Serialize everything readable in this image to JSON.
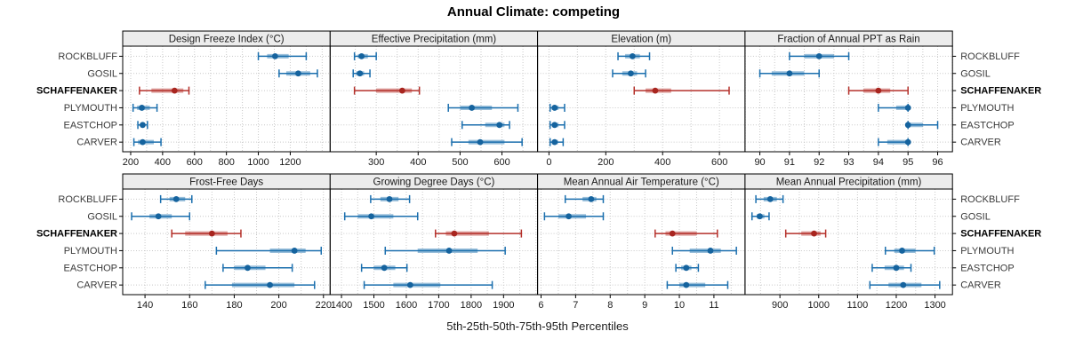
{
  "chart_data": {
    "type": "scatter",
    "subtype": "percentile-dotplot-trellis",
    "title": "Annual Climate: competing",
    "xlabel": "5th-25th-50th-75th-95th Percentiles",
    "percentile_levels": [
      5,
      25,
      50,
      75,
      95
    ],
    "stations": [
      "ROCKBLUFF",
      "GOSIL",
      "SCHAFFENAKER",
      "PLYMOUTH",
      "EASTCHOP",
      "CARVER"
    ],
    "highlight_station": "SCHAFFENAKER",
    "legend_position": "none",
    "grid": true,
    "colors": {
      "normal": "#1b6fae",
      "normal_point": "#15639e",
      "highlight": "#b5302a",
      "highlight_point": "#a8251f",
      "strip_bg": "#ececec",
      "border": "#000000",
      "grid_line": "#c9c9c9",
      "label": "#3a3a3a"
    },
    "panels": [
      {
        "title": "Design Freeze Index (°C)",
        "grid_row": 0,
        "xlim": [
          150,
          1450
        ],
        "ticks": [
          200,
          400,
          600,
          800,
          1000,
          1200
        ],
        "series": [
          [
            1000,
            1055,
            1105,
            1190,
            1300
          ],
          [
            1130,
            1175,
            1250,
            1325,
            1370
          ],
          [
            255,
            330,
            475,
            530,
            565
          ],
          [
            215,
            240,
            270,
            320,
            365
          ],
          [
            245,
            260,
            275,
            290,
            305
          ],
          [
            220,
            245,
            275,
            345,
            390
          ]
        ]
      },
      {
        "title": "Effective Precipitation (mm)",
        "grid_row": 0,
        "xlim": [
          190,
          685
        ],
        "ticks": [
          300,
          400,
          500,
          600
        ],
        "series": [
          [
            248,
            256,
            265,
            280,
            300
          ],
          [
            245,
            252,
            261,
            271,
            285
          ],
          [
            248,
            300,
            362,
            385,
            403
          ],
          [
            472,
            500,
            528,
            576,
            638
          ],
          [
            505,
            560,
            594,
            606,
            618
          ],
          [
            480,
            520,
            548,
            606,
            648
          ]
        ]
      },
      {
        "title": "Elevation (m)",
        "grid_row": 0,
        "xlim": [
          -40,
          690
        ],
        "ticks": [
          0,
          200,
          400,
          600
        ],
        "series": [
          [
            243,
            268,
            294,
            320,
            354
          ],
          [
            224,
            258,
            288,
            310,
            340
          ],
          [
            300,
            340,
            374,
            430,
            634
          ],
          [
            4,
            10,
            20,
            34,
            55
          ],
          [
            4,
            10,
            20,
            34,
            55
          ],
          [
            4,
            10,
            20,
            32,
            50
          ]
        ]
      },
      {
        "title": "Fraction of Annual PPT as Rain",
        "grid_row": 0,
        "xlim": [
          89.5,
          96.5
        ],
        "ticks": [
          90,
          91,
          92,
          93,
          94,
          95,
          96
        ],
        "series": [
          [
            91,
            91.5,
            92,
            92.5,
            93
          ],
          [
            90,
            90.4,
            91,
            91.5,
            92
          ],
          [
            93,
            93.5,
            94,
            94.4,
            95
          ],
          [
            94,
            94.6,
            95,
            95,
            95
          ],
          [
            95,
            95,
            95,
            95.5,
            96
          ],
          [
            94,
            94.3,
            95,
            95,
            95
          ]
        ]
      },
      {
        "title": "Frost-Free Days",
        "grid_row": 1,
        "xlim": [
          130,
          223
        ],
        "ticks": [
          140,
          160,
          180,
          200,
          220
        ],
        "series": [
          [
            147,
            151,
            154,
            158,
            161
          ],
          [
            134,
            142,
            146,
            152,
            160
          ],
          [
            152,
            158,
            170,
            177,
            183
          ],
          [
            172,
            196,
            207,
            212,
            219
          ],
          [
            175,
            180,
            186,
            194,
            206
          ],
          [
            167,
            179,
            196,
            207,
            216
          ]
        ]
      },
      {
        "title": "Growing Degree Days (°C)",
        "grid_row": 1,
        "xlim": [
          1365,
          2005
        ],
        "ticks": [
          1400,
          1500,
          1600,
          1700,
          1800,
          1900
        ],
        "series": [
          [
            1490,
            1520,
            1548,
            1576,
            1610
          ],
          [
            1410,
            1450,
            1492,
            1560,
            1635
          ],
          [
            1690,
            1722,
            1748,
            1855,
            1955
          ],
          [
            1535,
            1635,
            1732,
            1820,
            1905
          ],
          [
            1462,
            1500,
            1532,
            1566,
            1602
          ],
          [
            1470,
            1560,
            1612,
            1705,
            1865
          ]
        ]
      },
      {
        "title": "Mean Annual Air Temperature (°C)",
        "grid_row": 1,
        "xlim": [
          5.9,
          11.9
        ],
        "ticks": [
          6,
          7,
          8,
          9,
          10,
          11
        ],
        "series": [
          [
            6.7,
            7.2,
            7.45,
            7.6,
            7.8
          ],
          [
            6.1,
            6.5,
            6.8,
            7.3,
            7.8
          ],
          [
            9.3,
            9.6,
            9.8,
            10.5,
            11.1
          ],
          [
            9.8,
            10.3,
            10.9,
            11.2,
            11.65
          ],
          [
            9.9,
            10.05,
            10.2,
            10.35,
            10.55
          ],
          [
            9.65,
            10.0,
            10.2,
            10.75,
            11.4
          ]
        ]
      },
      {
        "title": "Mean Annual Precipitation (mm)",
        "grid_row": 1,
        "xlim": [
          810,
          1345
        ],
        "ticks": [
          900,
          1000,
          1100,
          1200,
          1300
        ],
        "series": [
          [
            838,
            858,
            875,
            892,
            908
          ],
          [
            828,
            840,
            848,
            860,
            872
          ],
          [
            915,
            955,
            988,
            1005,
            1018
          ],
          [
            1172,
            1195,
            1215,
            1250,
            1298
          ],
          [
            1138,
            1170,
            1200,
            1220,
            1238
          ],
          [
            1132,
            1180,
            1218,
            1265,
            1312
          ]
        ]
      }
    ]
  }
}
